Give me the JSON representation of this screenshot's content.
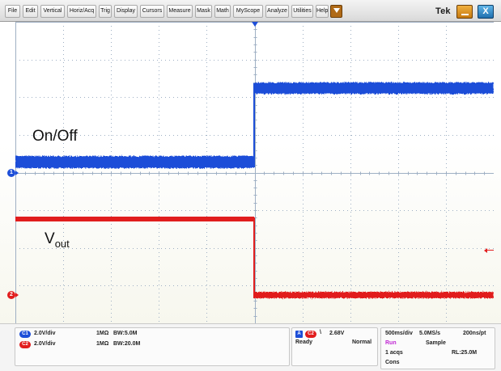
{
  "menu": [
    {
      "label": "File"
    },
    {
      "label": "Edit"
    },
    {
      "label": "Vertical"
    },
    {
      "label": "Horiz/Acq"
    },
    {
      "label": "Trig"
    },
    {
      "label": "Display"
    },
    {
      "label": "Cursors"
    },
    {
      "label": "Measure"
    },
    {
      "label": "Mask"
    },
    {
      "label": "Math"
    },
    {
      "label": "MyScope"
    },
    {
      "label": "Analyze"
    },
    {
      "label": "Utilities"
    },
    {
      "label": "Help"
    }
  ],
  "brand": "Tek",
  "close_glyph": "X",
  "icons": {
    "help_arrow": "down-arrow-icon",
    "minimize": "minimize-icon",
    "close": "close-icon"
  },
  "colors": {
    "ch1": "#1d4ed8",
    "ch2": "#e11d1d",
    "grid": "#9fb0c4"
  },
  "display": {
    "h_divisions": 10,
    "v_divisions": 8
  },
  "waveform_labels": {
    "onoff": "On/Off",
    "vout_main": "V",
    "vout_sub": "out"
  },
  "markers": {
    "ch1": "1",
    "ch2": "2"
  },
  "channels": [
    {
      "tag": "C1",
      "scale": "2.0V/div",
      "impedance": "1MΩ",
      "bandwidth": "BW:5.0M"
    },
    {
      "tag": "C2",
      "scale": "2.0V/div",
      "impedance": "1MΩ",
      "bandwidth": "BW:20.0M"
    }
  ],
  "trigger": {
    "badge": "A",
    "source": "C2",
    "slope": "\\",
    "level": "2.68V",
    "state": "Ready",
    "mode": "Normal"
  },
  "acquisition": {
    "timebase": "500ms/div",
    "sample_rate": "5.0MS/s",
    "resolution": "200ns/pt",
    "run_state": "Run",
    "acq_mode": "Sample",
    "acqs": "1 acqs",
    "record_length": "RL:25.0M",
    "cons": "Cons"
  }
}
